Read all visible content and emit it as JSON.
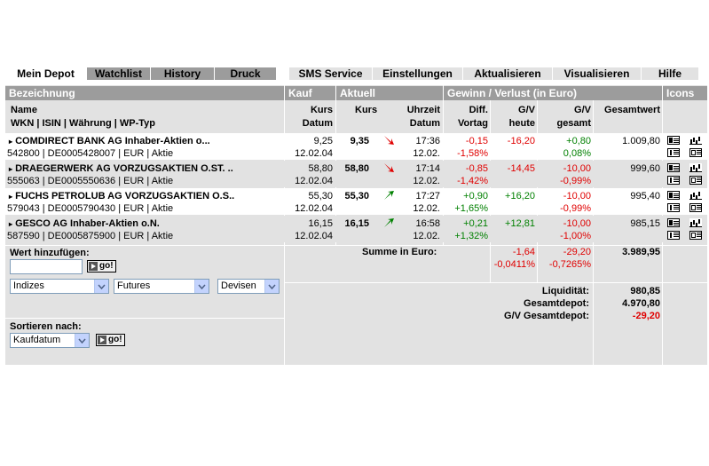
{
  "tabs_left": [
    "Mein Depot",
    "Watchlist",
    "History",
    "Druck"
  ],
  "tabs_right": [
    "SMS Service",
    "Einstellungen",
    "Aktualisieren",
    "Visualisieren",
    "Hilfe"
  ],
  "header": {
    "bezeichnung": "Bezeichnung",
    "kauf": "Kauf",
    "aktuell": "Aktuell",
    "gewinn": "Gewinn / Verlust  (in Euro)",
    "icons": "Icons"
  },
  "subheader": {
    "name": "Name",
    "wkn": "WKN | ISIN | Währung | WP-Typ",
    "kurs1": "Kurs",
    "datum1": "Datum",
    "kurs2": "Kurs",
    "uhrzeit": "Uhrzeit",
    "datum2": "Datum",
    "diff": "Diff.",
    "vortag": "Vortag",
    "gv1": "G/V",
    "heute": "heute",
    "gv2": "G/V",
    "gesamt": "gesamt",
    "gesamtwert": "Gesamtwert"
  },
  "rows": [
    {
      "name": "COMDIRECT BANK AG Inhaber-Aktien o...",
      "info": "542800 | DE0005428007 | EUR | Aktie",
      "kauf_kurs": "9,25",
      "kauf_datum": "12.02.04",
      "kurs": "9,35",
      "trend": "down",
      "zeit": "17:36",
      "datum": "12.02.",
      "diff": "-0,15",
      "diff_pct": "-1,58%",
      "gv_heute": "-16,20",
      "gv_gesamt": "+0,80",
      "gv_pct": "0,08%",
      "wert": "1.009,80"
    },
    {
      "name": "DRAEGERWERK AG VORZUGSAKTIEN O.ST. ..",
      "info": "555063 | DE0005550636 | EUR | Aktie",
      "kauf_kurs": "58,80",
      "kauf_datum": "12.02.04",
      "kurs": "58,80",
      "trend": "down",
      "zeit": "17:14",
      "datum": "12.02.",
      "diff": "-0,85",
      "diff_pct": "-1,42%",
      "gv_heute": "-14,45",
      "gv_gesamt": "-10,00",
      "gv_pct": "-0,99%",
      "wert": "999,60"
    },
    {
      "name": "FUCHS PETROLUB AG VORZUGSAKTIEN O.S..",
      "info": "579043 | DE0005790430 | EUR | Aktie",
      "kauf_kurs": "55,30",
      "kauf_datum": "12.02.04",
      "kurs": "55,30",
      "trend": "up",
      "zeit": "17:27",
      "datum": "12.02.",
      "diff": "+0,90",
      "diff_pct": "+1,65%",
      "gv_heute": "+16,20",
      "gv_gesamt": "-10,00",
      "gv_pct": "-0,99%",
      "wert": "995,40"
    },
    {
      "name": "GESCO AG Inhaber-Aktien o.N.",
      "info": "587590 | DE0005875900 | EUR | Aktie",
      "kauf_kurs": "16,15",
      "kauf_datum": "12.02.04",
      "kurs": "16,15",
      "trend": "up",
      "zeit": "16:58",
      "datum": "12.02.",
      "diff": "+0,21",
      "diff_pct": "+1,32%",
      "gv_heute": "+12,81",
      "gv_gesamt": "-10,00",
      "gv_pct": "-1,00%",
      "wert": "985,15"
    }
  ],
  "add": {
    "label": "Wert hinzufügen:",
    "input_value": "",
    "go": "go!"
  },
  "selects": {
    "indizes": "Indizes",
    "futures": "Futures",
    "devisen": "Devisen"
  },
  "sort": {
    "label": "Sortieren nach:",
    "value": "Kaufdatum",
    "go": "go!"
  },
  "summe": {
    "label": "Summe in Euro:",
    "heute": "-1,64",
    "heute_pct": "-0,0411%",
    "gesamt": "-29,20",
    "gesamt_pct": "-0,7265%",
    "wert": "3.989,95"
  },
  "liquiditaet": {
    "label": "Liquidität:",
    "value": "980,85"
  },
  "gesamtdepot": {
    "label": "Gesamtdepot:",
    "value": "4.970,80"
  },
  "gv_gesamtdepot": {
    "label": "G/V Gesamtdepot:",
    "value": "-29,20"
  },
  "colors": {
    "header_bg": "#9c9c9c",
    "panel_bg": "#e2e2e2",
    "negative": "#e00000",
    "positive": "#008000"
  }
}
